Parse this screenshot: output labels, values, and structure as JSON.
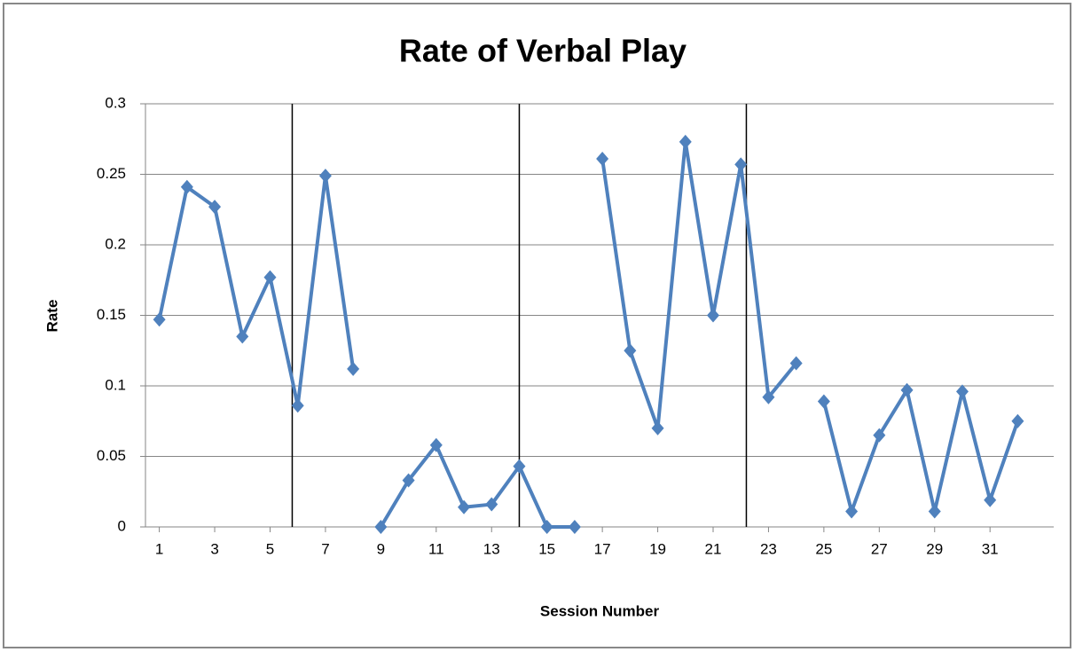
{
  "chart_data": {
    "type": "line",
    "title": "Rate of Verbal Play",
    "xlabel": "Session Number",
    "ylabel": "Rate",
    "color": "#4f81bd",
    "series": [
      {
        "x": [
          1,
          2,
          3,
          4,
          5,
          6,
          7,
          8
        ],
        "values": [
          0.147,
          0.241,
          0.227,
          0.135,
          0.177,
          0.086,
          0.249,
          0.112
        ]
      },
      {
        "x": [
          9,
          10,
          11,
          12,
          13,
          14,
          15,
          16
        ],
        "values": [
          0,
          0.033,
          0.058,
          0.014,
          0.016,
          0.043,
          0,
          0
        ]
      },
      {
        "x": [
          17,
          18,
          19,
          20,
          21,
          22,
          23,
          24
        ],
        "values": [
          0.261,
          0.125,
          0.07,
          0.273,
          0.15,
          0.257,
          0.092,
          0.116
        ]
      },
      {
        "x": [
          25,
          26,
          27,
          28,
          29,
          30,
          31,
          32
        ],
        "values": [
          0.089,
          0.011,
          0.065,
          0.097,
          0.011,
          0.096,
          0.019,
          0.075
        ]
      }
    ],
    "vlines": [
      5.8,
      14,
      22.2
    ],
    "xlim": [
      0.5,
      33.3
    ],
    "xticks": [
      1,
      3,
      5,
      7,
      9,
      11,
      13,
      15,
      17,
      19,
      21,
      23,
      25,
      27,
      29,
      31
    ],
    "ylim": [
      0,
      0.3
    ],
    "yticks": [
      0,
      0.05,
      0.1,
      0.15,
      0.2,
      0.25,
      0.3
    ],
    "grid": true
  }
}
